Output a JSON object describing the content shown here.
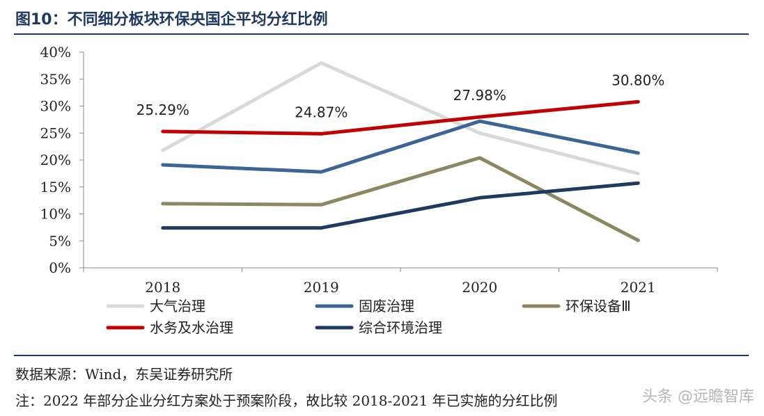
{
  "title": "图10：不同细分板块环保央国企平均分红比例",
  "source": "数据来源：Wind，东吴证券研究所",
  "note": "注：2022 年部分企业分红方案处于预案阶段，故比较 2018-2021 年已实施的分红比例",
  "watermark": "头条 @远瞻智库",
  "chart_data": {
    "type": "line",
    "categories": [
      "2018",
      "2019",
      "2020",
      "2021"
    ],
    "ylim": [
      0,
      40
    ],
    "yticks": [
      0,
      5,
      10,
      15,
      20,
      25,
      30,
      35,
      40
    ],
    "ytick_labels": [
      "0%",
      "5%",
      "10%",
      "15%",
      "20%",
      "25%",
      "30%",
      "35%",
      "40%"
    ],
    "grid": false,
    "legend_position": "bottom",
    "series": [
      {
        "name": "大气治理",
        "color": "#d9d9d9",
        "values": [
          21.8,
          38.0,
          25.0,
          17.5
        ]
      },
      {
        "name": "固废治理",
        "color": "#3b6497",
        "values": [
          19.1,
          17.8,
          27.2,
          21.3
        ]
      },
      {
        "name": "环保设备Ⅲ",
        "color": "#8c8760",
        "values": [
          11.9,
          11.7,
          20.4,
          5.1
        ]
      },
      {
        "name": "水务及水治理",
        "color": "#c00000",
        "values": [
          25.29,
          24.87,
          27.98,
          30.8
        ],
        "data_labels": [
          "25.29%",
          "24.87%",
          "27.98%",
          "30.80%"
        ]
      },
      {
        "name": "综合环境治理",
        "color": "#1f3a5f",
        "values": [
          7.4,
          7.4,
          13.0,
          15.7
        ]
      }
    ]
  }
}
